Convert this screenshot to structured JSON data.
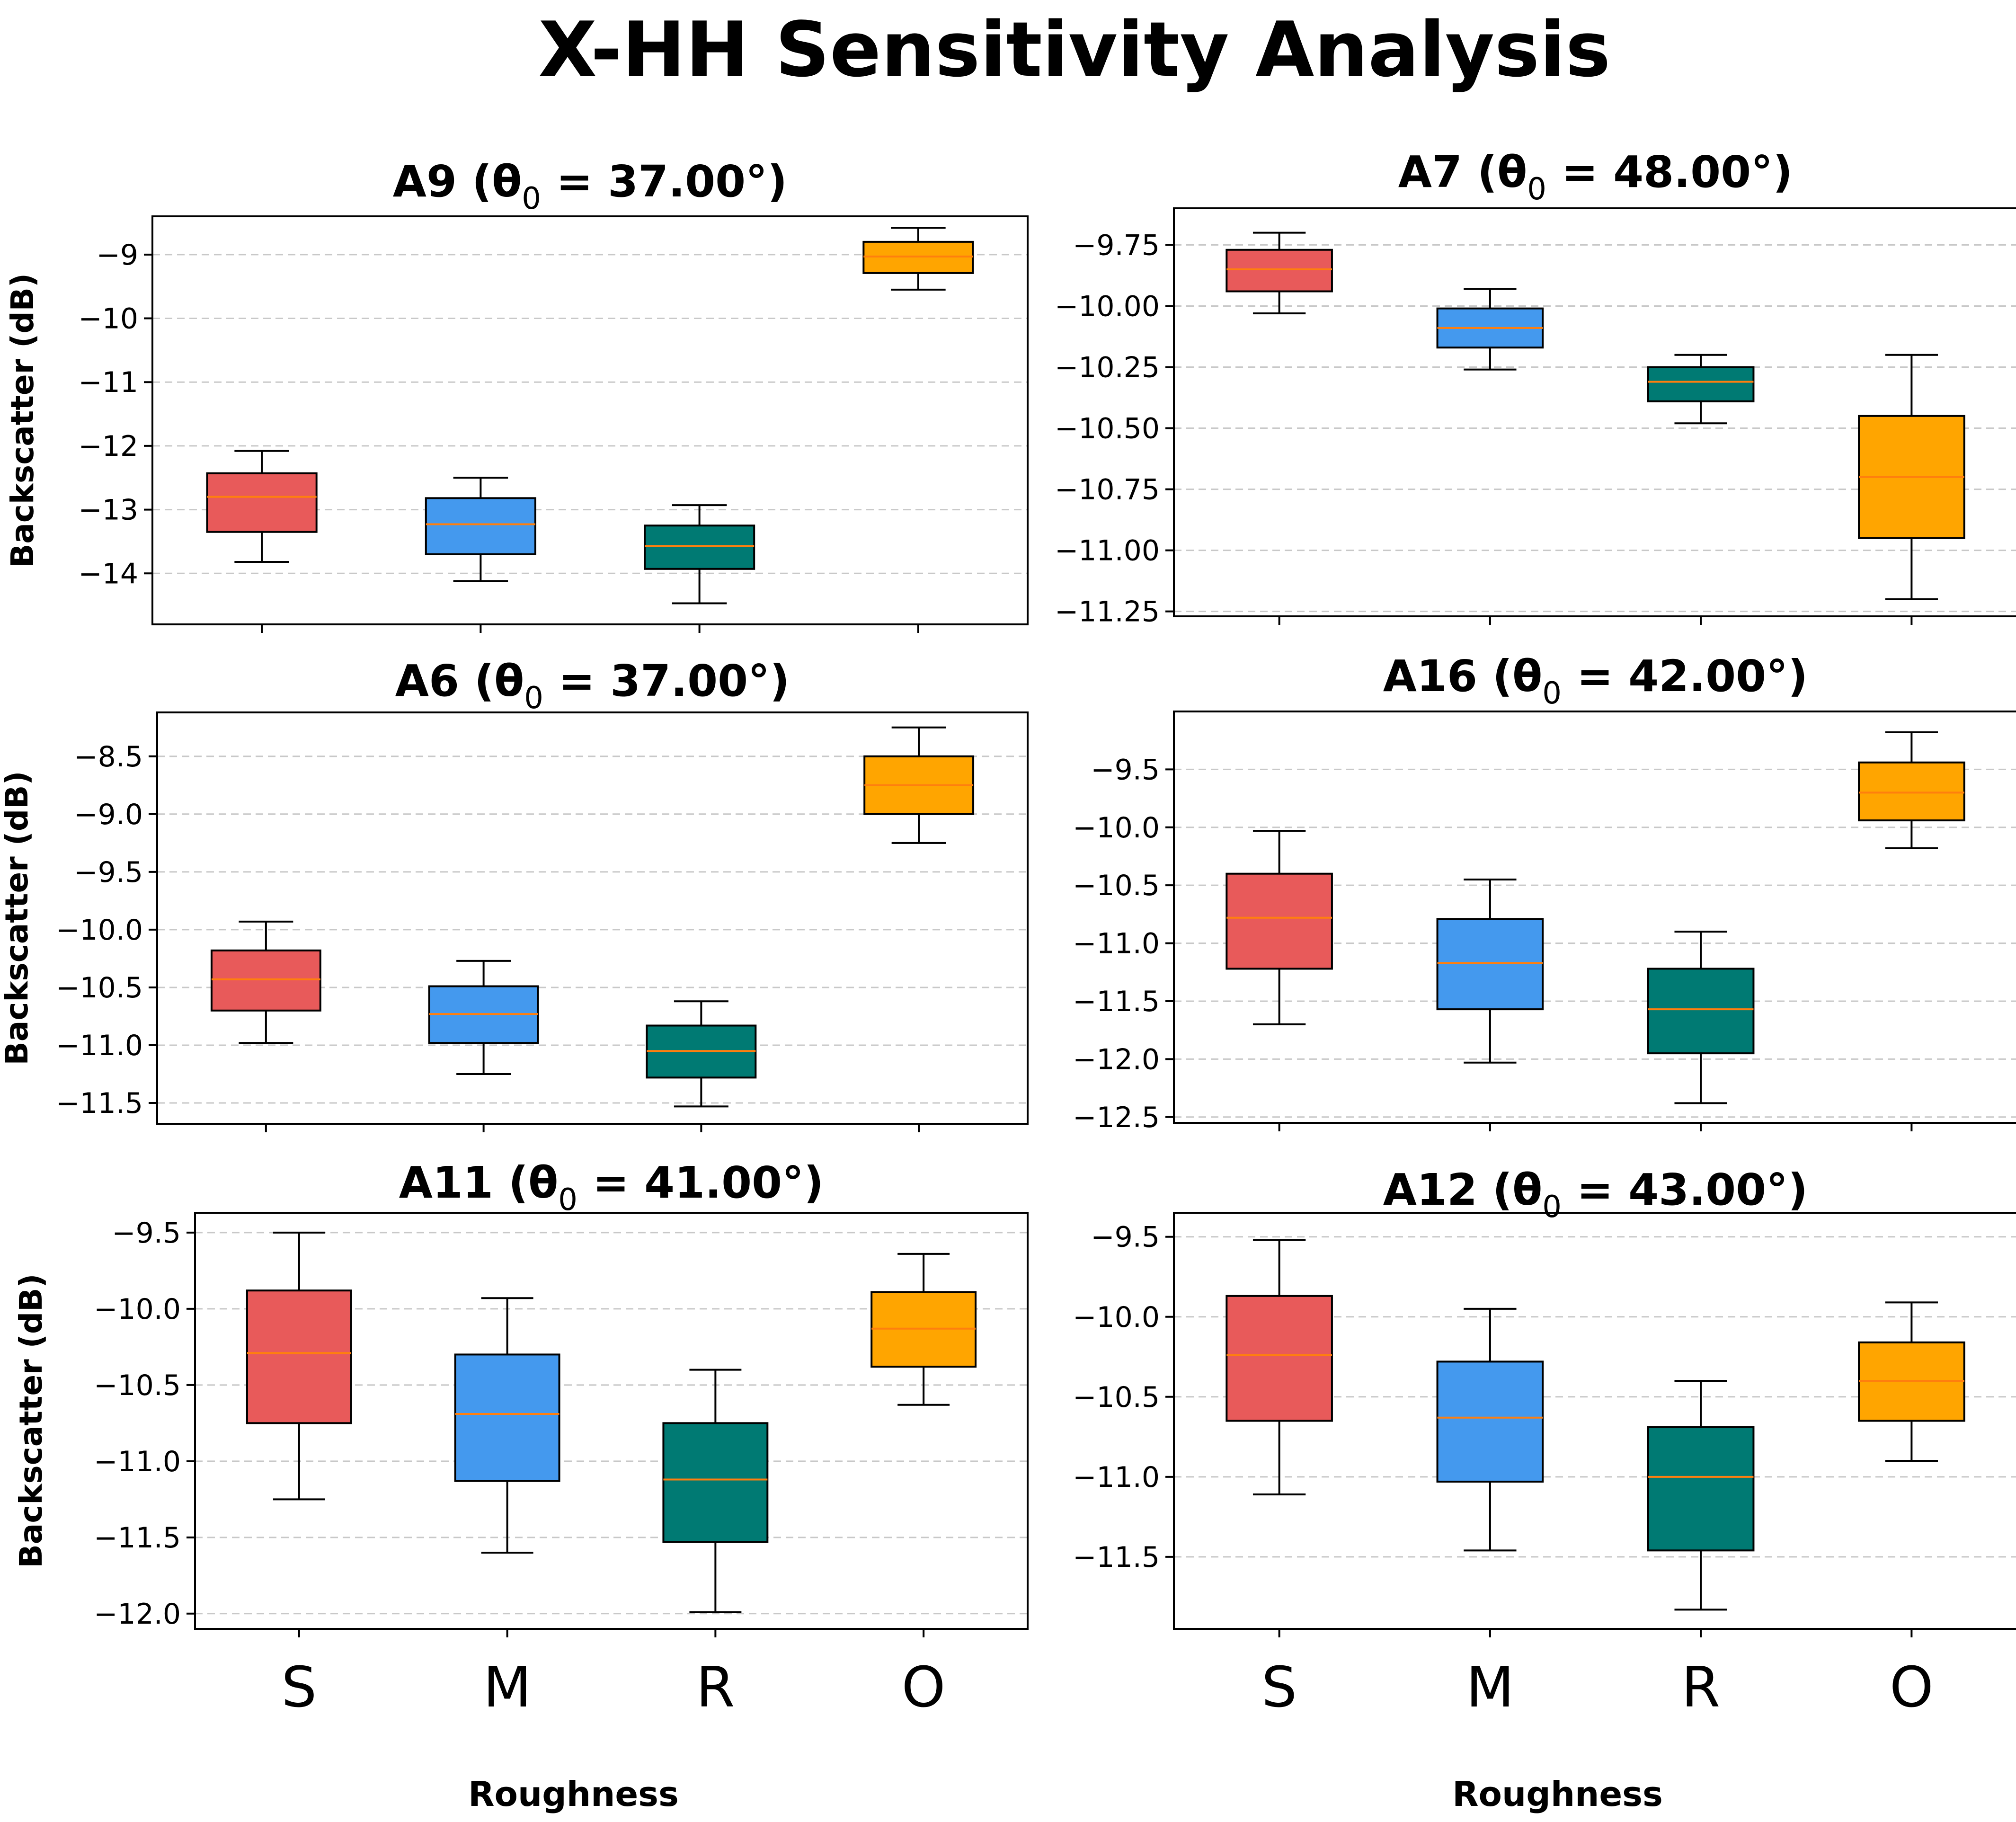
{
  "title": "X-HH Sensitivity Analysis",
  "colors": {
    "S": "#e85a5a",
    "M": "#4499ee",
    "R": "#007a73",
    "O": "#ffa500",
    "median": "#ff7f0e",
    "grid": "#c8c8c8"
  },
  "chart_data": [
    {
      "type": "box",
      "title": "A9 (θ",
      "title_sub": "0",
      "title_rest": " = 37.00°)",
      "ylabel": "Backscatter (dB)",
      "xlabel": "",
      "categories": [
        "S",
        "M",
        "R",
        "O"
      ],
      "show_category_labels": false,
      "ylim": [
        -14.8,
        -8.4
      ],
      "yticks": [
        -14,
        -13,
        -12,
        -11,
        -10,
        -9
      ],
      "ytick_labels": [
        "−14",
        "−13",
        "−12",
        "−11",
        "−10",
        "−9"
      ],
      "boxes": [
        {
          "whislo": -13.82,
          "q1": -13.35,
          "med": -12.8,
          "q3": -12.43,
          "whishi": -12.08
        },
        {
          "whislo": -14.12,
          "q1": -13.7,
          "med": -13.23,
          "q3": -12.82,
          "whishi": -12.5
        },
        {
          "whislo": -14.47,
          "q1": -13.93,
          "med": -13.57,
          "q3": -13.25,
          "whishi": -12.93
        },
        {
          "whislo": -9.55,
          "q1": -9.29,
          "med": -9.03,
          "q3": -8.8,
          "whishi": -8.58
        }
      ]
    },
    {
      "type": "box",
      "title": "A7 (θ",
      "title_sub": "0",
      "title_rest": " = 48.00°)",
      "ylabel": "",
      "xlabel": "",
      "categories": [
        "S",
        "M",
        "R",
        "O"
      ],
      "show_category_labels": false,
      "ylim": [
        -11.27,
        -9.6
      ],
      "yticks": [
        -11.25,
        -11.0,
        -10.75,
        -10.5,
        -10.25,
        -10.0,
        -9.75
      ],
      "ytick_labels": [
        "−11.25",
        "−11.00",
        "−10.75",
        "−10.50",
        "−10.25",
        "−10.00",
        "−9.75"
      ],
      "boxes": [
        {
          "whislo": -10.03,
          "q1": -9.94,
          "med": -9.85,
          "q3": -9.77,
          "whishi": -9.7
        },
        {
          "whislo": -10.26,
          "q1": -10.17,
          "med": -10.09,
          "q3": -10.01,
          "whishi": -9.93
        },
        {
          "whislo": -10.48,
          "q1": -10.39,
          "med": -10.31,
          "q3": -10.25,
          "whishi": -10.2
        },
        {
          "whislo": -11.2,
          "q1": -10.95,
          "med": -10.7,
          "q3": -10.45,
          "whishi": -10.2
        }
      ]
    },
    {
      "type": "box",
      "title": "A6 (θ",
      "title_sub": "0",
      "title_rest": " = 37.00°)",
      "ylabel": "Backscatter (dB)",
      "xlabel": "",
      "categories": [
        "S",
        "M",
        "R",
        "O"
      ],
      "show_category_labels": false,
      "ylim": [
        -11.68,
        -8.12
      ],
      "yticks": [
        -11.5,
        -11.0,
        -10.5,
        -10.0,
        -9.5,
        -9.0,
        -8.5
      ],
      "ytick_labels": [
        "−11.5",
        "−11.0",
        "−10.5",
        "−10.0",
        "−9.5",
        "−9.0",
        "−8.5"
      ],
      "boxes": [
        {
          "whislo": -10.98,
          "q1": -10.7,
          "med": -10.43,
          "q3": -10.18,
          "whishi": -9.93
        },
        {
          "whislo": -11.25,
          "q1": -10.98,
          "med": -10.73,
          "q3": -10.49,
          "whishi": -10.27
        },
        {
          "whislo": -11.53,
          "q1": -11.28,
          "med": -11.05,
          "q3": -10.83,
          "whishi": -10.62
        },
        {
          "whislo": -9.25,
          "q1": -9.0,
          "med": -8.75,
          "q3": -8.5,
          "whishi": -8.25
        }
      ]
    },
    {
      "type": "box",
      "title": "A16 (θ",
      "title_sub": "0",
      "title_rest": " = 42.00°)",
      "ylabel": "",
      "xlabel": "",
      "categories": [
        "S",
        "M",
        "R",
        "O"
      ],
      "show_category_labels": false,
      "ylim": [
        -12.55,
        -9.0
      ],
      "yticks": [
        -12.5,
        -12.0,
        -11.5,
        -11.0,
        -10.5,
        -10.0,
        -9.5
      ],
      "ytick_labels": [
        "−12.5",
        "−12.0",
        "−11.5",
        "−11.0",
        "−10.5",
        "−10.0",
        "−9.5"
      ],
      "boxes": [
        {
          "whislo": -11.7,
          "q1": -11.22,
          "med": -10.78,
          "q3": -10.4,
          "whishi": -10.03
        },
        {
          "whislo": -12.03,
          "q1": -11.57,
          "med": -11.17,
          "q3": -10.79,
          "whishi": -10.45
        },
        {
          "whislo": -12.38,
          "q1": -11.95,
          "med": -11.57,
          "q3": -11.22,
          "whishi": -10.9
        },
        {
          "whislo": -10.18,
          "q1": -9.94,
          "med": -9.7,
          "q3": -9.44,
          "whishi": -9.18
        }
      ]
    },
    {
      "type": "box",
      "title": "A11 (θ",
      "title_sub": "0",
      "title_rest": " = 41.00°)",
      "ylabel": "Backscatter (dB)",
      "xlabel": "Roughness",
      "categories": [
        "S",
        "M",
        "R",
        "O"
      ],
      "show_category_labels": true,
      "ylim": [
        -12.1,
        -9.37
      ],
      "yticks": [
        -12.0,
        -11.5,
        -11.0,
        -10.5,
        -10.0,
        -9.5
      ],
      "ytick_labels": [
        "−12.0",
        "−11.5",
        "−11.0",
        "−10.5",
        "−10.0",
        "−9.5"
      ],
      "boxes": [
        {
          "whislo": -11.25,
          "q1": -10.75,
          "med": -10.29,
          "q3": -9.88,
          "whishi": -9.5
        },
        {
          "whislo": -11.6,
          "q1": -11.13,
          "med": -10.69,
          "q3": -10.3,
          "whishi": -9.93
        },
        {
          "whislo": -11.99,
          "q1": -11.53,
          "med": -11.12,
          "q3": -10.75,
          "whishi": -10.4
        },
        {
          "whislo": -10.63,
          "q1": -10.38,
          "med": -10.13,
          "q3": -9.89,
          "whishi": -9.64
        }
      ]
    },
    {
      "type": "box",
      "title": "A12 (θ",
      "title_sub": "0",
      "title_rest": " = 43.00°)",
      "ylabel": "",
      "xlabel": "Roughness",
      "categories": [
        "S",
        "M",
        "R",
        "O"
      ],
      "show_category_labels": true,
      "ylim": [
        -11.95,
        -9.35
      ],
      "yticks": [
        -11.5,
        -11.0,
        -10.5,
        -10.0,
        -9.5
      ],
      "ytick_labels": [
        "−11.5",
        "−11.0",
        "−10.5",
        "−10.0",
        "−9.5"
      ],
      "boxes": [
        {
          "whislo": -11.11,
          "q1": -10.65,
          "med": -10.24,
          "q3": -9.87,
          "whishi": -9.52
        },
        {
          "whislo": -11.46,
          "q1": -11.03,
          "med": -10.63,
          "q3": -10.28,
          "whishi": -9.95
        },
        {
          "whislo": -11.83,
          "q1": -11.46,
          "med": -11.0,
          "q3": -10.69,
          "whishi": -10.4
        },
        {
          "whislo": -10.9,
          "q1": -10.65,
          "med": -10.4,
          "q3": -10.16,
          "whishi": -9.91
        }
      ]
    }
  ]
}
